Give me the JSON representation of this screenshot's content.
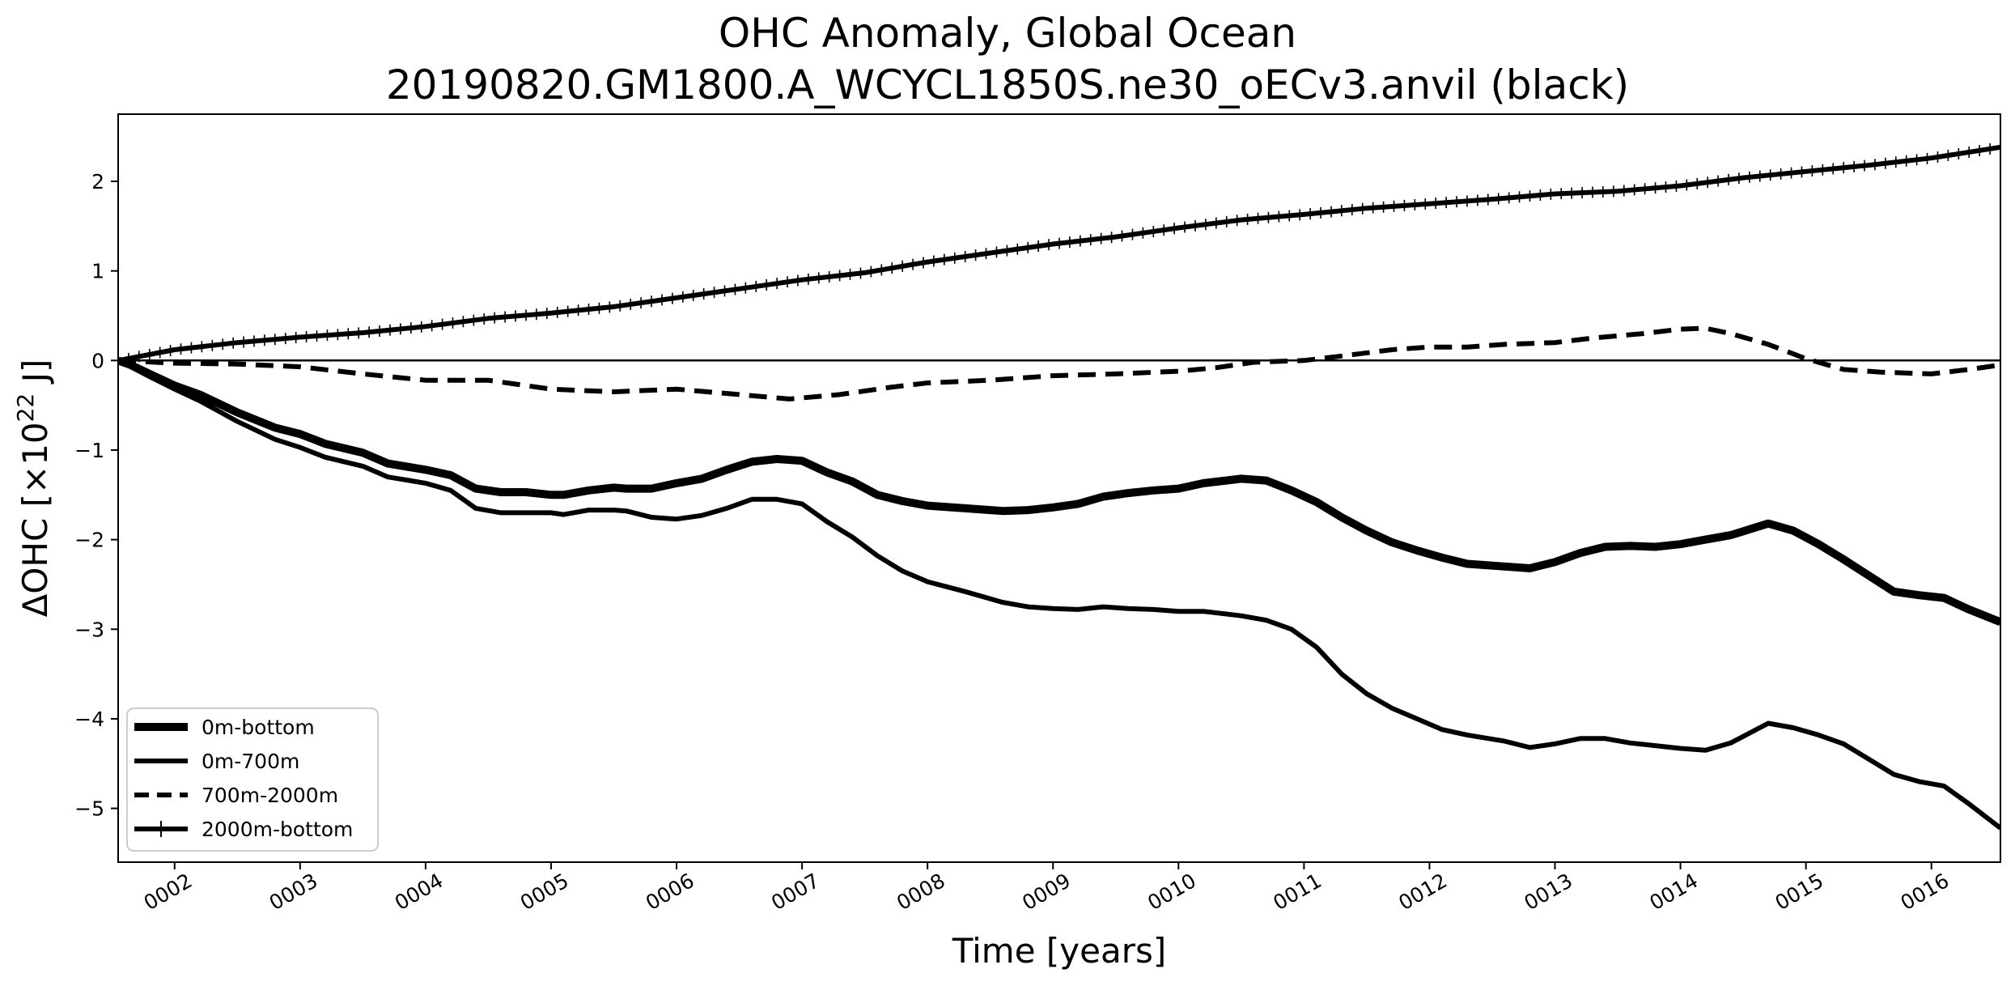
{
  "chart_data": {
    "type": "line",
    "title": "OHC Anomaly, Global Ocean",
    "subtitle": "20190820.GM1800.A_WCYCL1850S.ne30_oECv3.anvil (black)",
    "xlabel": "Time [years]",
    "ylabel": {
      "prefix": "ΔOHC [×10",
      "exponent": "22",
      "suffix": " J]"
    },
    "xlim": [
      1.55,
      16.55
    ],
    "ylim": [
      -5.6,
      2.75
    ],
    "x_ticks": [
      2,
      3,
      4,
      5,
      6,
      7,
      8,
      9,
      10,
      11,
      12,
      13,
      14,
      15,
      16
    ],
    "x_tick_labels": [
      "0002",
      "0003",
      "0004",
      "0005",
      "0006",
      "0007",
      "0008",
      "0009",
      "0010",
      "0011",
      "0012",
      "0013",
      "0014",
      "0015",
      "0016"
    ],
    "y_ticks": [
      -5,
      -4,
      -3,
      -2,
      -1,
      0,
      1,
      2
    ],
    "y_tick_labels": [
      "−5",
      "−4",
      "−3",
      "−2",
      "−1",
      "0",
      "1",
      "2"
    ],
    "zero_line": true,
    "grid": false,
    "legend_position": "lower-left",
    "line_color": "#000000",
    "series": [
      {
        "name": "0m-bottom",
        "style": "thick-solid",
        "x": [
          1.55,
          1.65,
          1.8,
          2.0,
          2.2,
          2.5,
          2.8,
          3.0,
          3.2,
          3.5,
          3.7,
          4.0,
          4.2,
          4.4,
          4.6,
          4.8,
          5.0,
          5.1,
          5.3,
          5.5,
          5.6,
          5.8,
          6.0,
          6.2,
          6.4,
          6.6,
          6.8,
          7.0,
          7.2,
          7.4,
          7.6,
          7.8,
          8.0,
          8.3,
          8.6,
          8.8,
          9.0,
          9.2,
          9.4,
          9.6,
          9.8,
          10.0,
          10.2,
          10.5,
          10.7,
          10.9,
          11.1,
          11.3,
          11.5,
          11.7,
          11.9,
          12.1,
          12.3,
          12.6,
          12.8,
          13.0,
          13.2,
          13.4,
          13.6,
          13.8,
          14.0,
          14.2,
          14.4,
          14.7,
          14.9,
          15.1,
          15.3,
          15.5,
          15.7,
          15.9,
          16.1,
          16.3,
          16.55
        ],
        "y": [
          0.0,
          -0.05,
          -0.15,
          -0.28,
          -0.38,
          -0.58,
          -0.75,
          -0.82,
          -0.93,
          -1.03,
          -1.15,
          -1.22,
          -1.28,
          -1.43,
          -1.47,
          -1.47,
          -1.5,
          -1.5,
          -1.45,
          -1.42,
          -1.43,
          -1.43,
          -1.37,
          -1.32,
          -1.22,
          -1.13,
          -1.1,
          -1.12,
          -1.25,
          -1.35,
          -1.5,
          -1.57,
          -1.62,
          -1.65,
          -1.68,
          -1.67,
          -1.64,
          -1.6,
          -1.52,
          -1.48,
          -1.45,
          -1.43,
          -1.37,
          -1.32,
          -1.34,
          -1.45,
          -1.58,
          -1.75,
          -1.9,
          -2.03,
          -2.12,
          -2.2,
          -2.27,
          -2.3,
          -2.32,
          -2.25,
          -2.15,
          -2.08,
          -2.07,
          -2.08,
          -2.05,
          -2.0,
          -1.95,
          -1.82,
          -1.9,
          -2.05,
          -2.22,
          -2.4,
          -2.58,
          -2.62,
          -2.65,
          -2.78,
          -2.92
        ]
      },
      {
        "name": "0m-700m",
        "style": "solid",
        "x": [
          1.55,
          1.65,
          1.8,
          2.0,
          2.2,
          2.5,
          2.8,
          3.0,
          3.2,
          3.5,
          3.7,
          4.0,
          4.2,
          4.4,
          4.6,
          4.8,
          5.0,
          5.1,
          5.3,
          5.5,
          5.6,
          5.8,
          6.0,
          6.2,
          6.4,
          6.6,
          6.8,
          7.0,
          7.2,
          7.4,
          7.6,
          7.8,
          8.0,
          8.3,
          8.6,
          8.8,
          9.0,
          9.2,
          9.4,
          9.6,
          9.8,
          10.0,
          10.2,
          10.5,
          10.7,
          10.9,
          11.1,
          11.3,
          11.5,
          11.7,
          11.9,
          12.1,
          12.3,
          12.6,
          12.8,
          13.0,
          13.2,
          13.4,
          13.6,
          13.8,
          14.0,
          14.2,
          14.4,
          14.7,
          14.9,
          15.1,
          15.3,
          15.5,
          15.7,
          15.9,
          16.1,
          16.3,
          16.55
        ],
        "y": [
          0.0,
          -0.07,
          -0.18,
          -0.32,
          -0.45,
          -0.68,
          -0.88,
          -0.97,
          -1.08,
          -1.18,
          -1.3,
          -1.37,
          -1.45,
          -1.65,
          -1.7,
          -1.7,
          -1.7,
          -1.72,
          -1.67,
          -1.67,
          -1.68,
          -1.75,
          -1.77,
          -1.73,
          -1.65,
          -1.55,
          -1.55,
          -1.6,
          -1.8,
          -1.97,
          -2.18,
          -2.35,
          -2.47,
          -2.58,
          -2.7,
          -2.75,
          -2.77,
          -2.78,
          -2.75,
          -2.77,
          -2.78,
          -2.8,
          -2.8,
          -2.85,
          -2.9,
          -3.0,
          -3.2,
          -3.5,
          -3.72,
          -3.88,
          -4.0,
          -4.12,
          -4.18,
          -4.25,
          -4.32,
          -4.28,
          -4.22,
          -4.22,
          -4.27,
          -4.3,
          -4.33,
          -4.35,
          -4.27,
          -4.05,
          -4.1,
          -4.18,
          -4.28,
          -4.45,
          -4.62,
          -4.7,
          -4.75,
          -4.95,
          -5.22
        ]
      },
      {
        "name": "700m-2000m",
        "style": "dashed",
        "x": [
          1.55,
          2.0,
          2.5,
          3.0,
          3.5,
          4.0,
          4.5,
          5.0,
          5.5,
          6.0,
          6.5,
          6.9,
          7.3,
          7.7,
          8.0,
          8.5,
          9.0,
          9.5,
          10.0,
          10.3,
          10.6,
          11.0,
          11.3,
          11.7,
          12.0,
          12.3,
          12.6,
          13.0,
          13.3,
          13.7,
          14.0,
          14.2,
          14.4,
          14.7,
          15.0,
          15.3,
          15.6,
          16.0,
          16.3,
          16.55
        ],
        "y": [
          0.0,
          -0.03,
          -0.04,
          -0.07,
          -0.15,
          -0.22,
          -0.22,
          -0.32,
          -0.35,
          -0.32,
          -0.38,
          -0.43,
          -0.38,
          -0.3,
          -0.25,
          -0.22,
          -0.17,
          -0.15,
          -0.12,
          -0.08,
          -0.02,
          0.0,
          0.05,
          0.12,
          0.15,
          0.15,
          0.18,
          0.2,
          0.25,
          0.3,
          0.35,
          0.36,
          0.3,
          0.18,
          0.02,
          -0.1,
          -0.13,
          -0.15,
          -0.1,
          -0.05
        ]
      },
      {
        "name": "2000m-bottom",
        "style": "solid-plus-markers",
        "x": [
          1.55,
          2.0,
          2.5,
          3.0,
          3.5,
          4.0,
          4.5,
          5.0,
          5.5,
          6.0,
          6.5,
          7.0,
          7.5,
          8.0,
          8.5,
          9.0,
          9.5,
          10.0,
          10.5,
          11.0,
          11.5,
          12.0,
          12.5,
          13.0,
          13.5,
          14.0,
          14.5,
          15.0,
          15.5,
          16.0,
          16.55
        ],
        "y": [
          0.0,
          0.12,
          0.2,
          0.26,
          0.31,
          0.38,
          0.47,
          0.53,
          0.6,
          0.7,
          0.8,
          0.9,
          0.98,
          1.1,
          1.2,
          1.3,
          1.38,
          1.48,
          1.57,
          1.63,
          1.7,
          1.75,
          1.8,
          1.86,
          1.89,
          1.95,
          2.04,
          2.11,
          2.18,
          2.26,
          2.38
        ]
      }
    ]
  }
}
